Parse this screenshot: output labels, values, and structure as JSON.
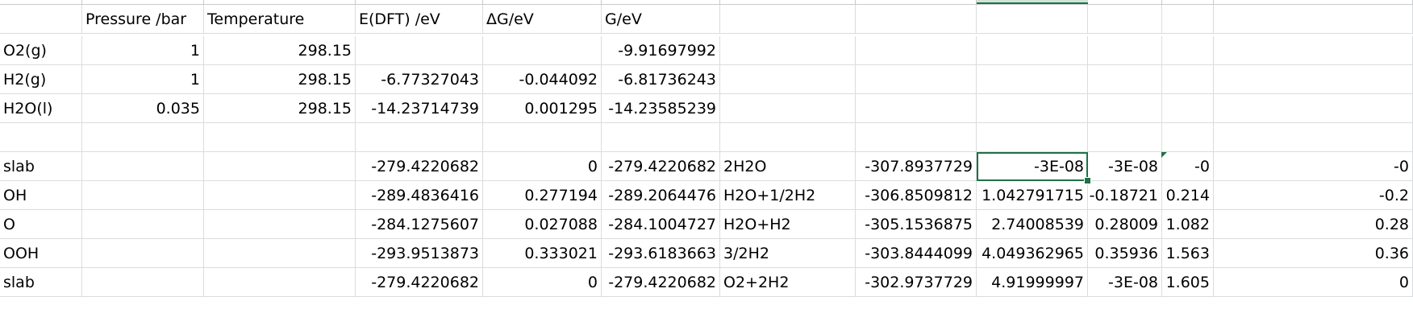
{
  "headers": [
    "",
    "Pressure /bar",
    "Temperature",
    "E(DFT) /eV",
    "ΔG/eV",
    "G/eV",
    "",
    "",
    "",
    "",
    "",
    ""
  ],
  "rows": [
    [
      "O2(g)",
      "1",
      "298.15",
      "",
      "",
      "-9.91697992",
      "",
      "",
      "",
      "",
      "",
      ""
    ],
    [
      "H2(g)",
      "1",
      "298.15",
      "-6.77327043",
      "-0.044092",
      "-6.81736243",
      "",
      "",
      "",
      "",
      "",
      ""
    ],
    [
      "H2O(l)",
      "0.035",
      "298.15",
      "-14.23714739",
      "0.001295",
      "-14.23585239",
      "",
      "",
      "",
      "",
      "",
      ""
    ],
    [
      "",
      "",
      "",
      "",
      "",
      "",
      "",
      "",
      "",
      "",
      "",
      ""
    ],
    [
      "slab",
      "",
      "",
      "-279.4220682",
      "0",
      "-279.4220682",
      "2H2O",
      "-307.8937729",
      "-3E-08",
      "-3E-08",
      "-0",
      "-0"
    ],
    [
      "OH",
      "",
      "",
      "-289.4836416",
      "0.277194",
      "-289.2064476",
      "H2O+1/2H2",
      "-306.8509812",
      "1.042791715",
      "-0.18721",
      "0.214",
      "-0.2"
    ],
    [
      "O",
      "",
      "",
      "-284.1275607",
      "0.027088",
      "-284.1004727",
      "H2O+H2",
      "-305.1536875",
      "2.74008539",
      "0.28009",
      "1.082",
      "0.28"
    ],
    [
      "OOH",
      "",
      "",
      "-293.9513873",
      "0.333021",
      "-293.6183663",
      "3/2H2",
      "-303.8444099",
      "4.049362965",
      "0.35936",
      "1.563",
      "0.36"
    ],
    [
      "slab",
      "",
      "",
      "-279.4220682",
      "0",
      "-279.4220682",
      "O2+2H2",
      "-302.9737729",
      "4.91999997",
      "-3E-08",
      "1.605",
      "0"
    ]
  ],
  "colors": {
    "grid": "#dadcdf",
    "selection": "#1e7145"
  }
}
